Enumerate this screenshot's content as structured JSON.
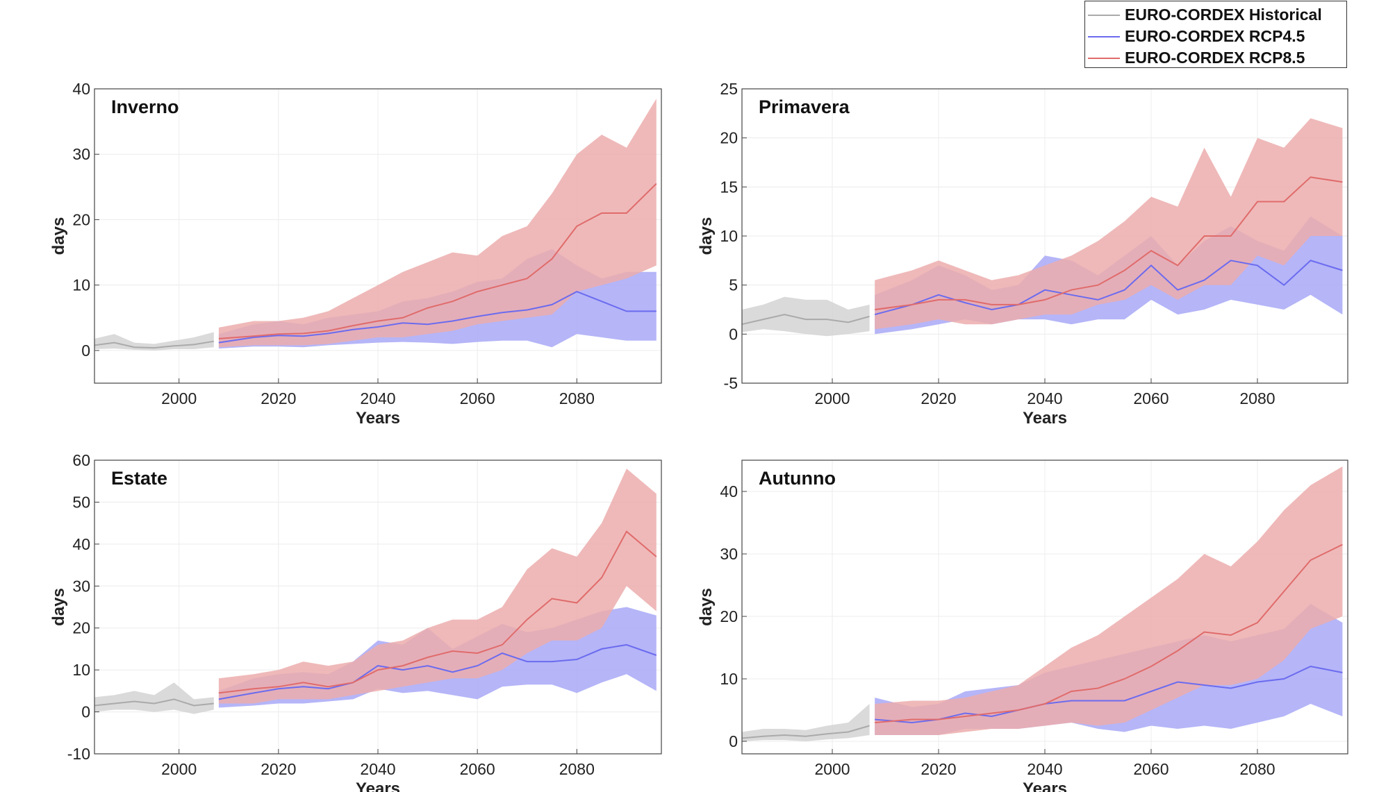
{
  "colors": {
    "historical_line": "#aaaaaa",
    "historical_band": "#d3d3d3",
    "rcp45_line": "#6b6bef",
    "rcp45_band": "#a8a8f7",
    "rcp85_line": "#e06b6b",
    "rcp85_band": "#ecadad"
  },
  "legend": {
    "placement": "top-right",
    "entries": [
      {
        "label": "EURO-CORDEX Historical",
        "color": "#aaaaaa"
      },
      {
        "label": "EURO-CORDEX RCP4.5",
        "color": "#6b6bef"
      },
      {
        "label": "EURO-CORDEX RCP8.5",
        "color": "#e06b6b"
      }
    ]
  },
  "chart_data": [
    {
      "type": "area",
      "title": "Inverno",
      "xlabel": "Years",
      "ylabel": "days",
      "xlim": [
        1983,
        2097
      ],
      "ylim": [
        -5,
        40
      ],
      "xticks": [
        2000,
        2020,
        2040,
        2060,
        2080
      ],
      "yticks": [
        0,
        10,
        20,
        30,
        40
      ],
      "grid": true,
      "series": [
        {
          "name": "EURO-CORDEX Historical",
          "x": [
            1983,
            1987,
            1991,
            1995,
            1999,
            2003,
            2007
          ],
          "mean": [
            0.8,
            1.2,
            0.5,
            0.4,
            0.7,
            0.9,
            1.4
          ],
          "lower": [
            0.2,
            0.3,
            0.1,
            0.0,
            0.2,
            0.2,
            0.5
          ],
          "upper": [
            1.8,
            2.5,
            1.2,
            1.0,
            1.5,
            2.0,
            2.8
          ]
        },
        {
          "name": "EURO-CORDEX RCP4.5",
          "x": [
            2008,
            2015,
            2020,
            2025,
            2030,
            2035,
            2040,
            2045,
            2050,
            2055,
            2060,
            2065,
            2070,
            2075,
            2080,
            2085,
            2090,
            2096
          ],
          "mean": [
            1.2,
            2.0,
            2.3,
            2.2,
            2.6,
            3.2,
            3.6,
            4.2,
            4.0,
            4.5,
            5.2,
            5.8,
            6.2,
            7.0,
            9.0,
            7.5,
            6.0,
            6.0
          ],
          "lower": [
            0.3,
            0.6,
            0.6,
            0.5,
            0.8,
            1.0,
            1.2,
            1.3,
            1.2,
            1.0,
            1.3,
            1.5,
            1.5,
            0.5,
            2.5,
            2.0,
            1.5,
            1.5
          ],
          "upper": [
            2.5,
            4.0,
            4.5,
            4.0,
            5.0,
            5.5,
            6.0,
            7.5,
            8.0,
            9.0,
            10.5,
            11.0,
            14.0,
            15.5,
            13.0,
            11.0,
            12.0,
            12.0
          ]
        },
        {
          "name": "EURO-CORDEX RCP8.5",
          "x": [
            2008,
            2015,
            2020,
            2025,
            2030,
            2035,
            2040,
            2045,
            2050,
            2055,
            2060,
            2065,
            2070,
            2075,
            2080,
            2085,
            2090,
            2096
          ],
          "mean": [
            1.8,
            2.2,
            2.5,
            2.6,
            3.0,
            3.8,
            4.5,
            5.0,
            6.5,
            7.5,
            9.0,
            10.0,
            11.0,
            14.0,
            19.0,
            21.0,
            21.0,
            25.5
          ],
          "lower": [
            0.5,
            0.8,
            0.8,
            0.8,
            1.0,
            1.5,
            2.0,
            2.0,
            2.5,
            3.0,
            4.0,
            4.5,
            5.0,
            5.5,
            9.0,
            10.0,
            11.0,
            13.0
          ],
          "upper": [
            3.5,
            4.5,
            4.5,
            5.0,
            6.0,
            8.0,
            10.0,
            12.0,
            13.5,
            15.0,
            14.5,
            17.5,
            19.0,
            24.0,
            30.0,
            33.0,
            31.0,
            38.5
          ]
        }
      ]
    },
    {
      "type": "area",
      "title": "Primavera",
      "xlabel": "Years",
      "ylabel": "days",
      "xlim": [
        1983,
        2097
      ],
      "ylim": [
        -5,
        25
      ],
      "xticks": [
        2000,
        2020,
        2040,
        2060,
        2080
      ],
      "yticks": [
        -5,
        0,
        5,
        10,
        15,
        20,
        25
      ],
      "grid": true,
      "series": [
        {
          "name": "EURO-CORDEX Historical",
          "x": [
            1983,
            1987,
            1991,
            1995,
            1999,
            2003,
            2007
          ],
          "mean": [
            1.0,
            1.5,
            2.0,
            1.5,
            1.5,
            1.2,
            1.8
          ],
          "lower": [
            0.2,
            0.5,
            0.3,
            0.0,
            -0.2,
            0.0,
            0.3
          ],
          "upper": [
            2.5,
            3.0,
            3.8,
            3.5,
            3.5,
            2.5,
            3.0
          ]
        },
        {
          "name": "EURO-CORDEX RCP4.5",
          "x": [
            2008,
            2015,
            2020,
            2025,
            2030,
            2035,
            2040,
            2045,
            2050,
            2055,
            2060,
            2065,
            2070,
            2075,
            2080,
            2085,
            2090,
            2096
          ],
          "mean": [
            2.0,
            3.0,
            4.0,
            3.2,
            2.5,
            3.0,
            4.5,
            4.0,
            3.5,
            4.5,
            7.0,
            4.5,
            5.5,
            7.5,
            7.0,
            5.0,
            7.5,
            6.5
          ],
          "lower": [
            0.0,
            0.5,
            1.0,
            1.5,
            1.0,
            1.5,
            1.5,
            1.0,
            1.5,
            1.5,
            3.5,
            2.0,
            2.5,
            3.5,
            3.0,
            2.5,
            4.0,
            2.0
          ],
          "upper": [
            4.0,
            5.5,
            7.0,
            6.0,
            4.5,
            5.0,
            8.0,
            7.5,
            6.0,
            8.0,
            10.0,
            7.0,
            9.5,
            11.0,
            9.5,
            8.5,
            12.0,
            10.0
          ]
        },
        {
          "name": "EURO-CORDEX RCP8.5",
          "x": [
            2008,
            2015,
            2020,
            2025,
            2030,
            2035,
            2040,
            2045,
            2050,
            2055,
            2060,
            2065,
            2070,
            2075,
            2080,
            2085,
            2090,
            2096
          ],
          "mean": [
            2.5,
            3.0,
            3.5,
            3.5,
            3.0,
            3.0,
            3.5,
            4.5,
            5.0,
            6.5,
            8.5,
            7.0,
            10.0,
            10.0,
            13.5,
            13.5,
            16.0,
            15.5
          ],
          "lower": [
            0.5,
            1.0,
            1.5,
            1.0,
            1.0,
            1.5,
            2.0,
            2.0,
            3.0,
            3.5,
            5.0,
            3.5,
            5.0,
            5.0,
            8.0,
            7.0,
            10.0,
            10.0
          ],
          "upper": [
            5.5,
            6.5,
            7.5,
            6.5,
            5.5,
            6.0,
            7.0,
            8.0,
            9.5,
            11.5,
            14.0,
            13.0,
            19.0,
            14.0,
            20.0,
            19.0,
            22.0,
            21.0
          ]
        }
      ]
    },
    {
      "type": "area",
      "title": "Estate",
      "xlabel": "Years",
      "ylabel": "days",
      "xlim": [
        1983,
        2097
      ],
      "ylim": [
        -10,
        60
      ],
      "xticks": [
        2000,
        2020,
        2040,
        2060,
        2080
      ],
      "yticks": [
        -10,
        0,
        10,
        20,
        30,
        40,
        50,
        60
      ],
      "grid": true,
      "series": [
        {
          "name": "EURO-CORDEX Historical",
          "x": [
            1983,
            1987,
            1991,
            1995,
            1999,
            2003,
            2007
          ],
          "mean": [
            1.5,
            2.0,
            2.5,
            2.0,
            3.0,
            1.5,
            2.0
          ],
          "lower": [
            0.0,
            0.5,
            0.5,
            0.0,
            0.5,
            -0.5,
            0.5
          ],
          "upper": [
            3.5,
            4.0,
            5.0,
            4.0,
            7.0,
            3.0,
            3.5
          ]
        },
        {
          "name": "EURO-CORDEX RCP4.5",
          "x": [
            2008,
            2015,
            2020,
            2025,
            2030,
            2035,
            2040,
            2045,
            2050,
            2055,
            2060,
            2065,
            2070,
            2075,
            2080,
            2085,
            2090,
            2096
          ],
          "mean": [
            3.0,
            4.5,
            5.5,
            6.0,
            5.5,
            7.0,
            11.0,
            10.0,
            11.0,
            9.5,
            11.0,
            14.0,
            12.0,
            12.0,
            12.5,
            15.0,
            16.0,
            13.5
          ],
          "lower": [
            1.0,
            1.5,
            2.0,
            2.0,
            2.5,
            3.0,
            5.5,
            4.5,
            5.0,
            4.0,
            3.0,
            6.0,
            6.5,
            6.5,
            4.5,
            7.0,
            9.0,
            5.0
          ],
          "upper": [
            5.0,
            8.0,
            9.0,
            9.5,
            9.0,
            12.0,
            17.0,
            16.0,
            20.0,
            15.0,
            18.0,
            21.0,
            19.0,
            20.0,
            22.0,
            24.0,
            25.0,
            23.0
          ]
        },
        {
          "name": "EURO-CORDEX RCP8.5",
          "x": [
            2008,
            2015,
            2020,
            2025,
            2030,
            2035,
            2040,
            2045,
            2050,
            2055,
            2060,
            2065,
            2070,
            2075,
            2080,
            2085,
            2090,
            2096
          ],
          "mean": [
            4.5,
            5.5,
            6.0,
            7.0,
            6.0,
            7.0,
            10.0,
            11.0,
            13.0,
            14.5,
            14.0,
            16.0,
            22.0,
            27.0,
            26.0,
            32.0,
            43.0,
            37.0
          ],
          "lower": [
            2.0,
            2.0,
            3.0,
            3.0,
            3.0,
            4.0,
            5.0,
            6.0,
            7.0,
            8.0,
            8.0,
            10.0,
            14.0,
            17.0,
            17.0,
            20.0,
            30.0,
            24.0
          ],
          "upper": [
            8.0,
            9.0,
            10.0,
            12.0,
            11.0,
            12.0,
            16.0,
            17.0,
            20.0,
            22.0,
            22.0,
            25.0,
            34.0,
            39.0,
            37.0,
            45.0,
            58.0,
            52.0
          ]
        }
      ]
    },
    {
      "type": "area",
      "title": "Autunno",
      "xlabel": "Years",
      "ylabel": "days",
      "xlim": [
        1983,
        2097
      ],
      "ylim": [
        -2,
        45
      ],
      "xticks": [
        2000,
        2020,
        2040,
        2060,
        2080
      ],
      "yticks": [
        0,
        10,
        20,
        30,
        40
      ],
      "grid": true,
      "series": [
        {
          "name": "EURO-CORDEX Historical",
          "x": [
            1983,
            1987,
            1991,
            1995,
            1999,
            2003,
            2007
          ],
          "mean": [
            0.5,
            0.8,
            1.0,
            0.8,
            1.2,
            1.5,
            2.5
          ],
          "lower": [
            0.0,
            0.2,
            0.2,
            0.0,
            0.3,
            0.5,
            1.0
          ],
          "upper": [
            1.5,
            2.0,
            2.0,
            1.8,
            2.5,
            3.0,
            6.0
          ]
        },
        {
          "name": "EURO-CORDEX RCP4.5",
          "x": [
            2008,
            2015,
            2020,
            2025,
            2030,
            2035,
            2040,
            2045,
            2050,
            2055,
            2060,
            2065,
            2070,
            2075,
            2080,
            2085,
            2090,
            2096
          ],
          "mean": [
            3.5,
            3.0,
            3.5,
            4.5,
            4.0,
            5.0,
            6.0,
            6.5,
            6.5,
            6.5,
            8.0,
            9.5,
            9.0,
            8.5,
            9.5,
            10.0,
            12.0,
            11.0
          ],
          "lower": [
            1.0,
            1.0,
            1.0,
            2.0,
            2.0,
            2.0,
            2.5,
            3.0,
            2.0,
            1.5,
            2.5,
            2.0,
            2.5,
            2.0,
            3.0,
            4.0,
            6.0,
            4.0
          ],
          "upper": [
            7.0,
            5.5,
            6.0,
            8.0,
            8.5,
            9.0,
            11.0,
            12.0,
            13.0,
            14.0,
            15.0,
            16.0,
            17.0,
            16.0,
            17.0,
            18.0,
            22.0,
            19.0
          ]
        },
        {
          "name": "EURO-CORDEX RCP8.5",
          "x": [
            2008,
            2015,
            2020,
            2025,
            2030,
            2035,
            2040,
            2045,
            2050,
            2055,
            2060,
            2065,
            2070,
            2075,
            2080,
            2085,
            2090,
            2096
          ],
          "mean": [
            3.0,
            3.5,
            3.5,
            4.0,
            4.5,
            5.0,
            6.0,
            8.0,
            8.5,
            10.0,
            12.0,
            14.5,
            17.5,
            17.0,
            19.0,
            24.0,
            29.0,
            31.5
          ],
          "lower": [
            1.0,
            1.0,
            1.0,
            1.5,
            2.0,
            2.0,
            2.5,
            3.0,
            2.5,
            3.0,
            5.0,
            7.0,
            9.0,
            9.0,
            10.0,
            13.0,
            18.0,
            20.0
          ],
          "upper": [
            6.0,
            6.5,
            6.5,
            7.0,
            8.0,
            9.0,
            12.0,
            15.0,
            17.0,
            20.0,
            23.0,
            26.0,
            30.0,
            28.0,
            32.0,
            37.0,
            41.0,
            44.0
          ]
        }
      ]
    }
  ]
}
